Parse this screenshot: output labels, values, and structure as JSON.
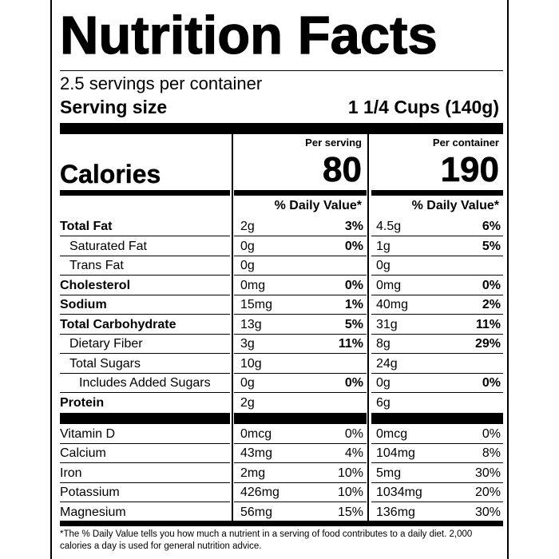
{
  "title": "Nutrition Facts",
  "servings_per_container": "2.5 servings per container",
  "serving_size_label": "Serving size",
  "serving_size_value": "1 1/4 Cups (140g)",
  "columns": {
    "per_serving_header": "Per serving",
    "per_container_header": "Per container",
    "dv_header": "% Daily Value*"
  },
  "calories": {
    "label": "Calories",
    "per_serving": "80",
    "per_container": "190"
  },
  "nutrients": [
    {
      "name": "Total Fat",
      "serving_amount": "2g",
      "serving_dv": "3%",
      "container_amount": "4.5g",
      "container_dv": "6%"
    },
    {
      "name": "Saturated Fat",
      "serving_amount": "0g",
      "serving_dv": "0%",
      "container_amount": "1g",
      "container_dv": "5%"
    },
    {
      "name": "Trans Fat",
      "serving_amount": "0g",
      "serving_dv": "",
      "container_amount": "0g",
      "container_dv": ""
    },
    {
      "name": "Cholesterol",
      "serving_amount": "0mg",
      "serving_dv": "0%",
      "container_amount": "0mg",
      "container_dv": "0%"
    },
    {
      "name": "Sodium",
      "serving_amount": "15mg",
      "serving_dv": "1%",
      "container_amount": "40mg",
      "container_dv": "2%"
    },
    {
      "name": "Total Carbohydrate",
      "serving_amount": "13g",
      "serving_dv": "5%",
      "container_amount": "31g",
      "container_dv": "11%"
    },
    {
      "name": "Dietary Fiber",
      "serving_amount": "3g",
      "serving_dv": "11%",
      "container_amount": "8g",
      "container_dv": "29%"
    },
    {
      "name": "Total Sugars",
      "serving_amount": "10g",
      "serving_dv": "",
      "container_amount": "24g",
      "container_dv": ""
    },
    {
      "name": "Includes Added Sugars",
      "serving_amount": "0g",
      "serving_dv": "0%",
      "container_amount": "0g",
      "container_dv": "0%"
    },
    {
      "name": "Protein",
      "serving_amount": "2g",
      "serving_dv": "",
      "container_amount": "6g",
      "container_dv": ""
    }
  ],
  "vitamins": [
    {
      "name": "Vitamin D",
      "serving_amount": "0mcg",
      "serving_dv": "0%",
      "container_amount": "0mcg",
      "container_dv": "0%"
    },
    {
      "name": "Calcium",
      "serving_amount": "43mg",
      "serving_dv": "4%",
      "container_amount": "104mg",
      "container_dv": "8%"
    },
    {
      "name": "Iron",
      "serving_amount": "2mg",
      "serving_dv": "10%",
      "container_amount": "5mg",
      "container_dv": "30%"
    },
    {
      "name": "Potassium",
      "serving_amount": "426mg",
      "serving_dv": "10%",
      "container_amount": "1034mg",
      "container_dv": "20%"
    },
    {
      "name": "Magnesium",
      "serving_amount": "56mg",
      "serving_dv": "15%",
      "container_amount": "136mg",
      "container_dv": "30%"
    }
  ],
  "footnote": "*The % Daily Value tells you how much a nutrient in a serving of food contributes to a daily diet. 2,000 calories a day is used for general nutrition advice."
}
